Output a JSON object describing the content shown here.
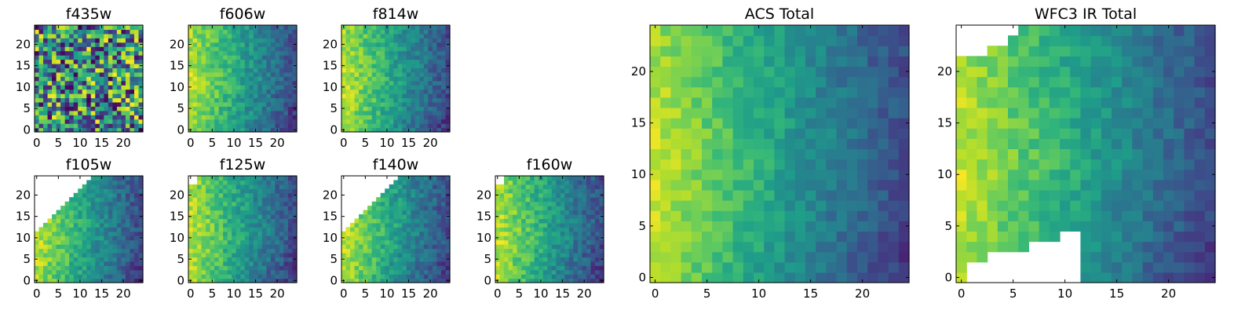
{
  "figure": {
    "background": "#ffffff",
    "colormap": "viridis",
    "colormap_stops": [
      "#440154",
      "#482878",
      "#3e4989",
      "#31688e",
      "#26828e",
      "#1f9e89",
      "#35b779",
      "#6ece58",
      "#b5de2b",
      "#fde725"
    ]
  },
  "chart_data": [
    {
      "type": "heatmap",
      "title": "f435w",
      "pattern": "noise",
      "xlim": [
        0,
        24
      ],
      "ylim": [
        0,
        24
      ],
      "rows": 25,
      "cols": 25,
      "xticks": [
        0,
        5,
        10,
        15,
        20
      ],
      "yticks": [
        0,
        5,
        10,
        15,
        20
      ],
      "mask": "none"
    },
    {
      "type": "heatmap",
      "title": "f606w",
      "pattern": "gradient",
      "xlim": [
        0,
        24
      ],
      "ylim": [
        0,
        24
      ],
      "rows": 25,
      "cols": 25,
      "xticks": [
        0,
        5,
        10,
        15,
        20
      ],
      "yticks": [
        0,
        5,
        10,
        15,
        20
      ],
      "mask": "none"
    },
    {
      "type": "heatmap",
      "title": "f814w",
      "pattern": "gradient",
      "xlim": [
        0,
        24
      ],
      "ylim": [
        0,
        24
      ],
      "rows": 25,
      "cols": 25,
      "xticks": [
        0,
        5,
        10,
        15,
        20
      ],
      "yticks": [
        0,
        5,
        10,
        15,
        20
      ],
      "mask": "none"
    },
    {
      "type": "heatmap",
      "title": "f105w",
      "pattern": "gradient",
      "xlim": [
        0,
        24
      ],
      "ylim": [
        0,
        24
      ],
      "rows": 25,
      "cols": 25,
      "xticks": [
        0,
        5,
        10,
        15,
        20
      ],
      "yticks": [
        0,
        5,
        10,
        15,
        20
      ],
      "mask": "upper-left-triangle"
    },
    {
      "type": "heatmap",
      "title": "f125w",
      "pattern": "gradient",
      "xlim": [
        0,
        24
      ],
      "ylim": [
        0,
        24
      ],
      "rows": 25,
      "cols": 25,
      "xticks": [
        0,
        5,
        10,
        15,
        20
      ],
      "yticks": [
        0,
        5,
        10,
        15,
        20
      ],
      "mask": "upper-left-corner"
    },
    {
      "type": "heatmap",
      "title": "f140w",
      "pattern": "gradient",
      "xlim": [
        0,
        24
      ],
      "ylim": [
        0,
        24
      ],
      "rows": 25,
      "cols": 25,
      "xticks": [
        0,
        5,
        10,
        15,
        20
      ],
      "yticks": [
        0,
        5,
        10,
        15,
        20
      ],
      "mask": "upper-left-triangle"
    },
    {
      "type": "heatmap",
      "title": "f160w",
      "pattern": "gradient",
      "xlim": [
        0,
        24
      ],
      "ylim": [
        0,
        24
      ],
      "rows": 25,
      "cols": 25,
      "xticks": [
        0,
        5,
        10,
        15,
        20
      ],
      "yticks": [
        0,
        5,
        10,
        15,
        20
      ],
      "mask": "upper-left-corner"
    },
    {
      "type": "heatmap",
      "title": "ACS Total",
      "pattern": "gradient",
      "xlim": [
        0,
        24
      ],
      "ylim": [
        0,
        24
      ],
      "rows": 25,
      "cols": 25,
      "xticks": [
        0,
        5,
        10,
        15,
        20
      ],
      "yticks": [
        0,
        5,
        10,
        15,
        20
      ],
      "mask": "none"
    },
    {
      "type": "heatmap",
      "title": "WFC3 IR Total",
      "pattern": "gradient",
      "xlim": [
        0,
        24
      ],
      "ylim": [
        0,
        24
      ],
      "rows": 25,
      "cols": 25,
      "xticks": [
        0,
        5,
        10,
        15,
        20
      ],
      "yticks": [
        0,
        5,
        10,
        15,
        20
      ],
      "mask": "wfc3-total"
    }
  ]
}
